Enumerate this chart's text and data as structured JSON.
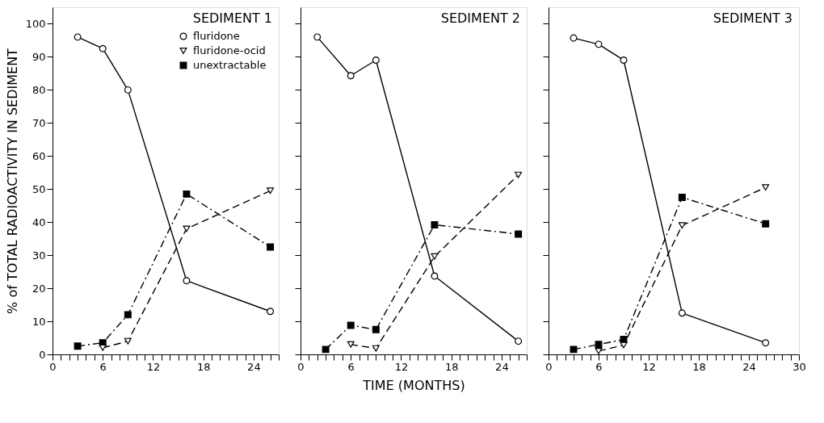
{
  "chart_data": [
    {
      "type": "line",
      "title": "SEDIMENT 1",
      "ylabel": "% of TOTAL RADIOACTIVITY IN SEDIMENT",
      "legend": "top right",
      "grid": false,
      "xlim": [
        0,
        27
      ],
      "ylim": [
        0,
        105
      ],
      "xticks": [
        0,
        {
          "value": 1,
          "label": null
        },
        {
          "value": 2,
          "label": null
        },
        {
          "value": 3,
          "label": null
        },
        {
          "value": 4,
          "label": null
        },
        {
          "value": 5,
          "label": null
        },
        6,
        {
          "value": 7,
          "label": null
        },
        {
          "value": 8,
          "label": null
        },
        {
          "value": 9,
          "label": null
        },
        {
          "value": 10,
          "label": null
        },
        {
          "value": 11,
          "label": null
        },
        12,
        {
          "value": 13,
          "label": null
        },
        {
          "value": 14,
          "label": null
        },
        {
          "value": 15,
          "label": null
        },
        {
          "value": 16,
          "label": null
        },
        {
          "value": 17,
          "label": null
        },
        18,
        {
          "value": 19,
          "label": null
        },
        {
          "value": 20,
          "label": null
        },
        {
          "value": 21,
          "label": null
        },
        {
          "value": 22,
          "label": null
        },
        {
          "value": 23,
          "label": null
        },
        24,
        {
          "value": 25,
          "label": null
        },
        {
          "value": 26,
          "label": null
        },
        {
          "value": 27,
          "label": null
        }
      ],
      "yticks": [
        0,
        10,
        20,
        30,
        40,
        50,
        60,
        70,
        80,
        90,
        100
      ],
      "series": [
        {
          "name": "fluridone",
          "color": "#000000",
          "marker": "circle",
          "line_style": "solid",
          "x": [
            3,
            6,
            9,
            16,
            26
          ],
          "values": [
            96,
            92.5,
            80,
            22.3,
            13
          ]
        },
        {
          "name": "fluridone-ocid",
          "color": "#000000",
          "marker": "triangle",
          "line_style": "dashed",
          "x": [
            6,
            9,
            16,
            26
          ],
          "values": [
            2,
            4,
            38,
            49.5
          ]
        },
        {
          "name": "unextractable",
          "color": "#000000",
          "marker": "square",
          "line_style": "dashdot",
          "x": [
            3,
            6,
            9,
            16,
            26
          ],
          "values": [
            2.5,
            3.5,
            12,
            48.5,
            32.5
          ]
        }
      ]
    },
    {
      "type": "line",
      "title": "SEDIMENT 2",
      "xlabel": "TIME (MONTHS)",
      "tick_labels": "x",
      "grid": false,
      "xlim": [
        0,
        27
      ],
      "ylim": [
        0,
        105
      ],
      "xticks": [
        0,
        {
          "value": 1,
          "label": null
        },
        {
          "value": 2,
          "label": null
        },
        {
          "value": 3,
          "label": null
        },
        {
          "value": 4,
          "label": null
        },
        {
          "value": 5,
          "label": null
        },
        6,
        {
          "value": 7,
          "label": null
        },
        {
          "value": 8,
          "label": null
        },
        {
          "value": 9,
          "label": null
        },
        {
          "value": 10,
          "label": null
        },
        {
          "value": 11,
          "label": null
        },
        12,
        {
          "value": 13,
          "label": null
        },
        {
          "value": 14,
          "label": null
        },
        {
          "value": 15,
          "label": null
        },
        {
          "value": 16,
          "label": null
        },
        {
          "value": 17,
          "label": null
        },
        18,
        {
          "value": 19,
          "label": null
        },
        {
          "value": 20,
          "label": null
        },
        {
          "value": 21,
          "label": null
        },
        {
          "value": 22,
          "label": null
        },
        {
          "value": 23,
          "label": null
        },
        24,
        {
          "value": 25,
          "label": null
        },
        {
          "value": 26,
          "label": null
        },
        {
          "value": 27,
          "label": null
        }
      ],
      "yticks": [
        0,
        10,
        20,
        30,
        40,
        50,
        60,
        70,
        80,
        90,
        100
      ],
      "series": [
        {
          "color": "#000000",
          "marker": "circle",
          "line_style": "solid",
          "x": [
            2,
            6,
            9,
            16,
            26
          ],
          "values": [
            96,
            84.3,
            89,
            23.7,
            4
          ]
        },
        {
          "color": "#000000",
          "marker": "triangle",
          "line_style": "dashed",
          "x": [
            6,
            9,
            16,
            26
          ],
          "values": [
            3,
            1.8,
            29.6,
            54.3
          ]
        },
        {
          "color": "#000000",
          "marker": "square",
          "line_style": "dashdot",
          "x": [
            3,
            6,
            9,
            16,
            26
          ],
          "values": [
            1.5,
            8.8,
            7.5,
            39.2,
            36.4
          ]
        }
      ]
    },
    {
      "type": "line",
      "title": "SEDIMENT 3",
      "tick_labels": "x",
      "grid": false,
      "xlim": [
        0,
        30
      ],
      "ylim": [
        0,
        105
      ],
      "xticks": [
        0,
        {
          "value": 1,
          "label": null
        },
        {
          "value": 2,
          "label": null
        },
        {
          "value": 3,
          "label": null
        },
        {
          "value": 4,
          "label": null
        },
        {
          "value": 5,
          "label": null
        },
        6,
        {
          "value": 7,
          "label": null
        },
        {
          "value": 8,
          "label": null
        },
        {
          "value": 9,
          "label": null
        },
        {
          "value": 10,
          "label": null
        },
        {
          "value": 11,
          "label": null
        },
        12,
        {
          "value": 13,
          "label": null
        },
        {
          "value": 14,
          "label": null
        },
        {
          "value": 15,
          "label": null
        },
        {
          "value": 16,
          "label": null
        },
        {
          "value": 17,
          "label": null
        },
        18,
        {
          "value": 19,
          "label": null
        },
        {
          "value": 20,
          "label": null
        },
        {
          "value": 21,
          "label": null
        },
        {
          "value": 22,
          "label": null
        },
        {
          "value": 23,
          "label": null
        },
        24,
        {
          "value": 25,
          "label": null
        },
        {
          "value": 26,
          "label": null
        },
        {
          "value": 27,
          "label": null
        },
        {
          "value": 28,
          "label": null
        },
        {
          "value": 29,
          "label": null
        },
        30
      ],
      "yticks": [
        0,
        10,
        20,
        30,
        40,
        50,
        60,
        70,
        80,
        90,
        100
      ],
      "series": [
        {
          "color": "#000000",
          "marker": "circle",
          "line_style": "solid",
          "x": [
            3,
            6,
            9,
            16,
            26
          ],
          "values": [
            95.7,
            93.8,
            89,
            12.5,
            3.5
          ]
        },
        {
          "color": "#000000",
          "marker": "triangle",
          "line_style": "dashed",
          "x": [
            6,
            9,
            16,
            26
          ],
          "values": [
            1,
            2.8,
            39,
            50.5
          ]
        },
        {
          "color": "#000000",
          "marker": "square",
          "line_style": "dashdot",
          "x": [
            3,
            6,
            9,
            16,
            26
          ],
          "values": [
            1.5,
            3,
            4.5,
            47.5,
            39.5
          ]
        }
      ]
    }
  ]
}
